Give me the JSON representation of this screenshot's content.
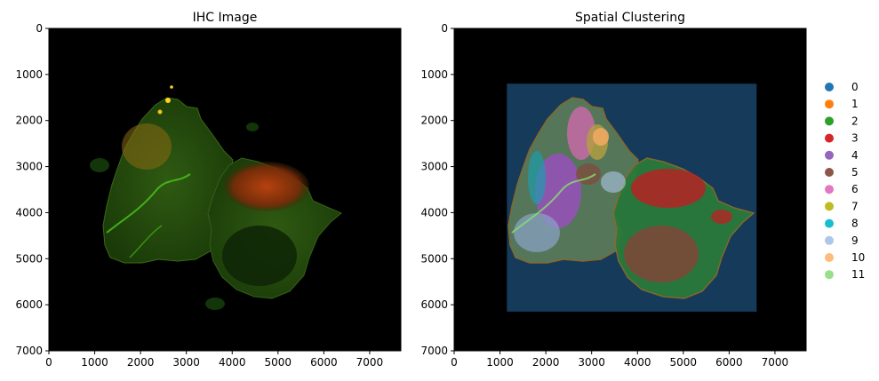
{
  "chart_data": [
    {
      "type": "image",
      "title": "IHC Image",
      "xlim": [
        0,
        7680
      ],
      "ylim": [
        7000,
        0
      ],
      "x_ticks": [
        0,
        1000,
        2000,
        3000,
        4000,
        5000,
        6000,
        7000
      ],
      "y_ticks": [
        0,
        1000,
        2000,
        3000,
        4000,
        5000,
        6000,
        7000
      ],
      "background": "#000000",
      "grid": false
    },
    {
      "type": "scatter",
      "title": "Spatial Clustering",
      "xlim": [
        0,
        7680
      ],
      "ylim": [
        7000,
        0
      ],
      "x_ticks": [
        0,
        1000,
        2000,
        3000,
        4000,
        5000,
        6000,
        7000
      ],
      "y_ticks": [
        0,
        1000,
        2000,
        3000,
        4000,
        5000,
        6000,
        7000
      ],
      "background": "#000000",
      "overlay_box": {
        "x": [
          1150,
          6600
        ],
        "y": [
          1200,
          6150
        ],
        "color": "#1f4e79"
      },
      "grid": false,
      "legend": {
        "placement": "right",
        "entries": [
          {
            "label": "0",
            "color": "#1f77b4"
          },
          {
            "label": "1",
            "color": "#ff7f0e"
          },
          {
            "label": "2",
            "color": "#2ca02c"
          },
          {
            "label": "3",
            "color": "#d62728"
          },
          {
            "label": "4",
            "color": "#9467bd"
          },
          {
            "label": "5",
            "color": "#8c564b"
          },
          {
            "label": "6",
            "color": "#e377c2"
          },
          {
            "label": "7",
            "color": "#bcbd22"
          },
          {
            "label": "8",
            "color": "#17becf"
          },
          {
            "label": "9",
            "color": "#aec7e8"
          },
          {
            "label": "10",
            "color": "#ffbb78"
          },
          {
            "label": "11",
            "color": "#98df8a"
          }
        ]
      }
    }
  ]
}
